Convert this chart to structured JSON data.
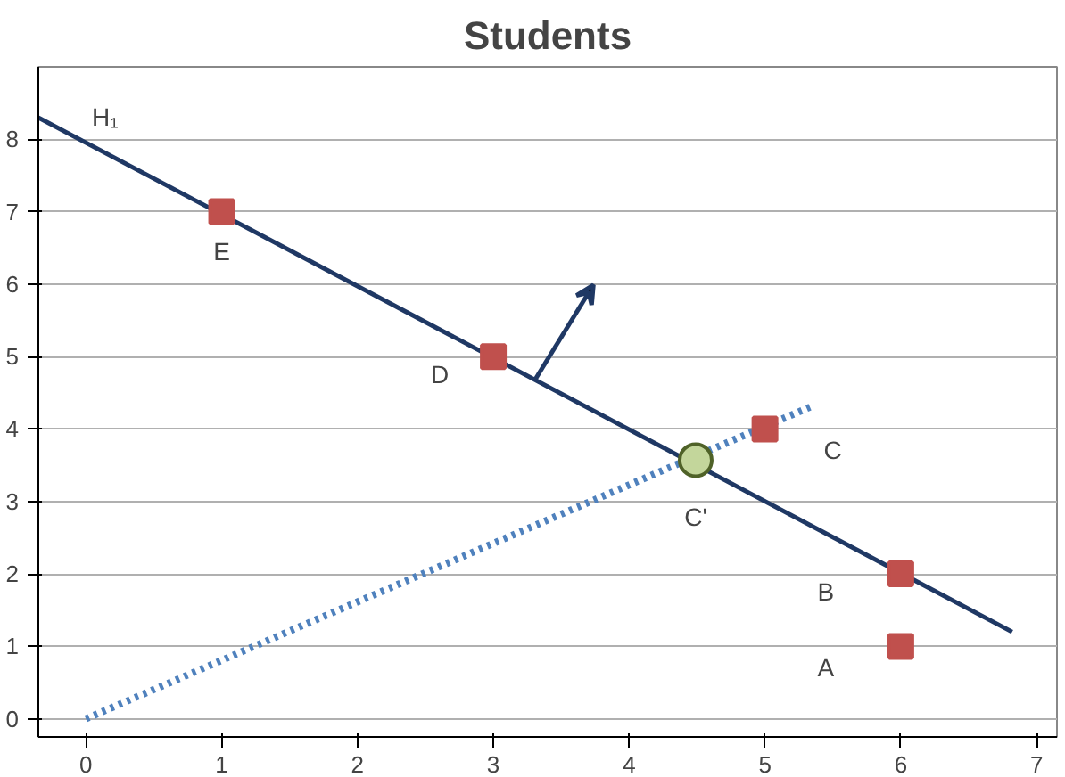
{
  "chart_data": {
    "type": "scatter",
    "title": "Students",
    "xlim": [
      -0.35,
      7.15
    ],
    "ylim": [
      -0.25,
      9.0
    ],
    "xticks": [
      0,
      1,
      2,
      3,
      4,
      5,
      6,
      7
    ],
    "yticks": [
      0,
      1,
      2,
      3,
      4,
      5,
      6,
      7,
      8
    ],
    "grid": "y",
    "series": [
      {
        "type": "line",
        "color": "#1f3864",
        "x": [
          -0.35,
          6.82
        ],
        "values": [
          8.3,
          1.2
        ],
        "line_style": "solid"
      },
      {
        "type": "line",
        "color": "#4f81bd",
        "x": [
          0,
          5.34
        ],
        "values": [
          0,
          4.31
        ],
        "line_style": "dotted"
      },
      {
        "color": "#c0504d",
        "x": [
          6,
          6,
          5,
          3,
          1
        ],
        "values": [
          1,
          2,
          4,
          5,
          7
        ],
        "marker": "square"
      },
      {
        "color": "#c3d69b",
        "x": [
          4.49
        ],
        "values": [
          3.57
        ],
        "marker": "circle"
      }
    ],
    "annotations": [
      "H₁",
      {
        "text": "E",
        "x": 1,
        "y": 7
      },
      {
        "text": "D",
        "x": 3,
        "y": 5
      },
      {
        "text": "C",
        "x": 5,
        "y": 4
      },
      {
        "text": "C'",
        "x": 4.49,
        "y": 3.57
      },
      {
        "text": "B",
        "x": 6,
        "y": 2
      },
      {
        "text": "A",
        "x": 6,
        "y": 1
      }
    ]
  }
}
